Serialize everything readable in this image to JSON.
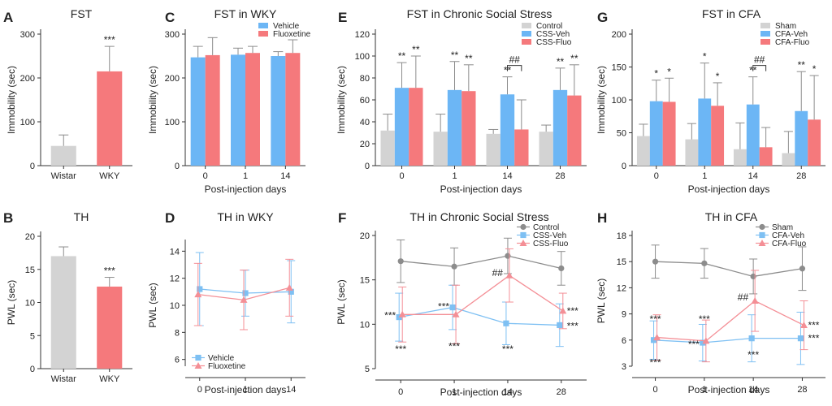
{
  "colors": {
    "gray": "#d3d3d3",
    "blue": "#6cb6f5",
    "red": "#f5797c",
    "line_gray": "#8c8c8c",
    "line_blue": "#7ec0f3",
    "line_red": "#f48f96",
    "err": "#8c8c8c"
  },
  "chart_data": [
    {
      "id": "A",
      "panel_label": "A",
      "type": "bar",
      "title": "FST",
      "ylabel": "Immobility (sec)",
      "xlabel": "",
      "ylim": [
        0,
        300
      ],
      "yticks": [
        0,
        100,
        200,
        300
      ],
      "categories": [
        "Wistar",
        "WKY"
      ],
      "series": [
        {
          "name": "",
          "color": "gray",
          "values": [
            45,
            215
          ],
          "errors": [
            25,
            57
          ]
        }
      ],
      "bar_colors": [
        "gray",
        "red"
      ],
      "annotations": [
        {
          "cat": 1,
          "text": "***"
        }
      ]
    },
    {
      "id": "B",
      "panel_label": "B",
      "type": "bar",
      "title": "TH",
      "ylabel": "PWL (sec)",
      "xlabel": "",
      "ylim": [
        0,
        20
      ],
      "yticks": [
        0,
        5,
        10,
        15,
        20
      ],
      "categories": [
        "Wistar",
        "WKY"
      ],
      "series": [
        {
          "name": "",
          "color": "gray",
          "values": [
            17,
            12.4
          ],
          "errors": [
            1.4,
            1.4
          ]
        }
      ],
      "bar_colors": [
        "gray",
        "red"
      ],
      "annotations": [
        {
          "cat": 1,
          "text": "***"
        }
      ]
    },
    {
      "id": "C",
      "panel_label": "C",
      "type": "bar",
      "title": "FST in WKY",
      "ylabel": "Immobility (sec)",
      "xlabel": "Post-injection days",
      "ylim": [
        0,
        300
      ],
      "yticks": [
        0,
        100,
        200,
        300
      ],
      "categories": [
        "0",
        "1",
        "14"
      ],
      "series": [
        {
          "name": "Vehicle",
          "color": "blue",
          "values": [
            247,
            253,
            250
          ],
          "errors": [
            25,
            15,
            10
          ]
        },
        {
          "name": "Fluoxetine",
          "color": "red",
          "values": [
            252,
            257,
            257
          ],
          "errors": [
            40,
            15,
            30
          ]
        }
      ],
      "legend": [
        "Vehicle",
        "Fluoxetine"
      ],
      "annotations": []
    },
    {
      "id": "D",
      "panel_label": "D",
      "type": "line",
      "title": "TH in WKY",
      "ylabel": "PWL (sec)",
      "xlabel": "Post-injection days",
      "ylim": [
        5.5,
        14.5
      ],
      "yticks": [
        6,
        8,
        10,
        12,
        14
      ],
      "categories": [
        "0",
        "1",
        "14"
      ],
      "series": [
        {
          "name": "Vehicle",
          "color": "line_blue",
          "marker": "square",
          "values": [
            11.2,
            10.9,
            11.0
          ],
          "errors": [
            2.7,
            1.7,
            2.3
          ]
        },
        {
          "name": "Fluoxetine",
          "color": "line_red",
          "marker": "triangle",
          "values": [
            10.8,
            10.4,
            11.3
          ],
          "errors": [
            2.3,
            2.2,
            2.1
          ]
        }
      ],
      "legend": [
        "Vehicle",
        "Fluoxetine"
      ],
      "annotations": []
    },
    {
      "id": "E",
      "panel_label": "E",
      "type": "bar",
      "title": "FST in Chronic Social Stress",
      "ylabel": "Immobility (sec)",
      "xlabel": "Post-injection days",
      "ylim": [
        0,
        120
      ],
      "yticks": [
        0,
        20,
        40,
        60,
        80,
        100,
        120
      ],
      "categories": [
        "0",
        "1",
        "14",
        "28"
      ],
      "series": [
        {
          "name": "Control",
          "color": "gray",
          "values": [
            32,
            31,
            29,
            31
          ],
          "errors": [
            15,
            16,
            4,
            6
          ]
        },
        {
          "name": "CSS-Veh",
          "color": "blue",
          "values": [
            71,
            69,
            65,
            69
          ],
          "errors": [
            23,
            26,
            16,
            20
          ]
        },
        {
          "name": "CSS-Fluo",
          "color": "red",
          "values": [
            71,
            68,
            33,
            64
          ],
          "errors": [
            29,
            24,
            27,
            28
          ]
        }
      ],
      "legend": [
        "Control",
        "CSS-Veh",
        "CSS-Fluo"
      ],
      "annotations": [
        {
          "cat": 0,
          "series": 1,
          "text": "**"
        },
        {
          "cat": 0,
          "series": 2,
          "text": "**"
        },
        {
          "cat": 1,
          "series": 1,
          "text": "**"
        },
        {
          "cat": 1,
          "series": 2,
          "text": "**"
        },
        {
          "cat": 2,
          "series": 1,
          "text": "**"
        },
        {
          "cat": 3,
          "series": 1,
          "text": "**"
        },
        {
          "cat": 3,
          "series": 2,
          "text": "**"
        }
      ],
      "brackets": [
        {
          "cat": 2,
          "from": 1,
          "to": 2,
          "text": "##"
        }
      ]
    },
    {
      "id": "F",
      "panel_label": "F",
      "type": "line",
      "title": "TH in Chronic Social Stress",
      "ylabel": "PWL (sec)",
      "xlabel": "Post-injection days",
      "ylim": [
        5,
        20
      ],
      "yticks": [
        5,
        10,
        15,
        20
      ],
      "categories": [
        "0",
        "1",
        "14",
        "28"
      ],
      "series": [
        {
          "name": "Control",
          "color": "line_gray",
          "marker": "circle",
          "values": [
            17.1,
            16.5,
            17.7,
            16.3
          ],
          "errors": [
            2.4,
            2.1,
            2.0,
            1.9
          ]
        },
        {
          "name": "CSS-Veh",
          "color": "line_blue",
          "marker": "square",
          "values": [
            10.8,
            11.9,
            10.1,
            9.9
          ],
          "errors": [
            2.7,
            2.5,
            2.4,
            2.4
          ]
        },
        {
          "name": "CSS-Fluo",
          "color": "line_red",
          "marker": "triangle",
          "values": [
            11.1,
            11.1,
            15.5,
            11.5
          ],
          "errors": [
            3.1,
            3.3,
            3.0,
            2.0
          ]
        }
      ],
      "legend": [
        "Control",
        "CSS-Veh",
        "CSS-Fluo"
      ],
      "annotations": [
        {
          "cat": 0,
          "text": "***",
          "pos": "left",
          "value": 11
        },
        {
          "cat": 0,
          "text": "***",
          "pos": "below",
          "value": 7.2
        },
        {
          "cat": 1,
          "text": "***",
          "pos": "left",
          "value": 12
        },
        {
          "cat": 1,
          "text": "***",
          "pos": "below",
          "value": 7.5
        },
        {
          "cat": 2,
          "text": "##",
          "pos": "left",
          "value": 15.8
        },
        {
          "cat": 2,
          "text": "***",
          "pos": "below",
          "value": 7.2
        },
        {
          "cat": 3,
          "text": "***",
          "pos": "right",
          "value": 11.5
        },
        {
          "cat": 3,
          "text": "***",
          "pos": "right",
          "value": 9.8
        }
      ]
    },
    {
      "id": "G",
      "panel_label": "G",
      "type": "bar",
      "title": "FST in CFA",
      "ylabel": "Immobility (sec)",
      "xlabel": "Post-injection days",
      "ylim": [
        0,
        200
      ],
      "yticks": [
        0,
        50,
        100,
        150,
        200
      ],
      "categories": [
        "0",
        "1",
        "14",
        "28"
      ],
      "series": [
        {
          "name": "Sham",
          "color": "gray",
          "values": [
            45,
            40,
            25,
            19
          ],
          "errors": [
            18,
            24,
            40,
            33
          ]
        },
        {
          "name": "CFA-Veh",
          "color": "blue",
          "values": [
            98,
            102,
            93,
            83
          ],
          "errors": [
            32,
            54,
            42,
            60
          ]
        },
        {
          "name": "CFA-Fluo",
          "color": "red",
          "values": [
            97,
            91,
            28,
            70
          ],
          "errors": [
            36,
            35,
            30,
            67
          ]
        }
      ],
      "legend": [
        "Sham",
        "CFA-Veh",
        "CFA-Fluo"
      ],
      "annotations": [
        {
          "cat": 0,
          "series": 1,
          "text": "*"
        },
        {
          "cat": 0,
          "series": 2,
          "text": "*"
        },
        {
          "cat": 1,
          "series": 1,
          "text": "*"
        },
        {
          "cat": 1,
          "series": 2,
          "text": "*"
        },
        {
          "cat": 2,
          "series": 1,
          "text": "**"
        },
        {
          "cat": 3,
          "series": 1,
          "text": "**"
        },
        {
          "cat": 3,
          "series": 2,
          "text": "*"
        }
      ],
      "brackets": [
        {
          "cat": 2,
          "from": 1,
          "to": 2,
          "text": "##"
        }
      ]
    },
    {
      "id": "H",
      "panel_label": "H",
      "type": "line",
      "title": "TH in CFA",
      "ylabel": "PWL (sec)",
      "xlabel": "Post-injection days",
      "ylim": [
        3,
        18
      ],
      "yticks": [
        3,
        6,
        9,
        12,
        15,
        18
      ],
      "categories": [
        "0",
        "1",
        "14",
        "28"
      ],
      "series": [
        {
          "name": "Sham",
          "color": "line_gray",
          "marker": "circle",
          "values": [
            15.0,
            14.8,
            13.3,
            14.2
          ],
          "errors": [
            1.9,
            1.7,
            2.0,
            2.5
          ]
        },
        {
          "name": "CFA-Veh",
          "color": "line_blue",
          "marker": "square",
          "values": [
            6.0,
            5.7,
            6.2,
            6.2
          ],
          "errors": [
            2.2,
            2.1,
            2.7,
            3.0
          ]
        },
        {
          "name": "CFA-Fluo",
          "color": "line_red",
          "marker": "triangle",
          "values": [
            6.3,
            5.9,
            10.5,
            7.7
          ],
          "errors": [
            2.6,
            2.4,
            3.5,
            2.8
          ]
        }
      ],
      "legend": [
        "Sham",
        "CFA-Veh",
        "CFA-Fluo"
      ],
      "annotations": [
        {
          "cat": 0,
          "text": "***",
          "pos": "below",
          "value": 8.4
        },
        {
          "cat": 0,
          "text": "***",
          "pos": "below",
          "value": 3.4
        },
        {
          "cat": 1,
          "text": "***",
          "pos": "below",
          "value": 8.4
        },
        {
          "cat": 1,
          "text": "***",
          "pos": "left",
          "value": 5.5
        },
        {
          "cat": 2,
          "text": "##",
          "pos": "left",
          "value": 10.9
        },
        {
          "cat": 2,
          "text": "***",
          "pos": "below",
          "value": 4.3
        },
        {
          "cat": 3,
          "text": "***",
          "pos": "right",
          "value": 7.7
        },
        {
          "cat": 3,
          "text": "***",
          "pos": "right",
          "value": 6.2
        }
      ]
    }
  ]
}
